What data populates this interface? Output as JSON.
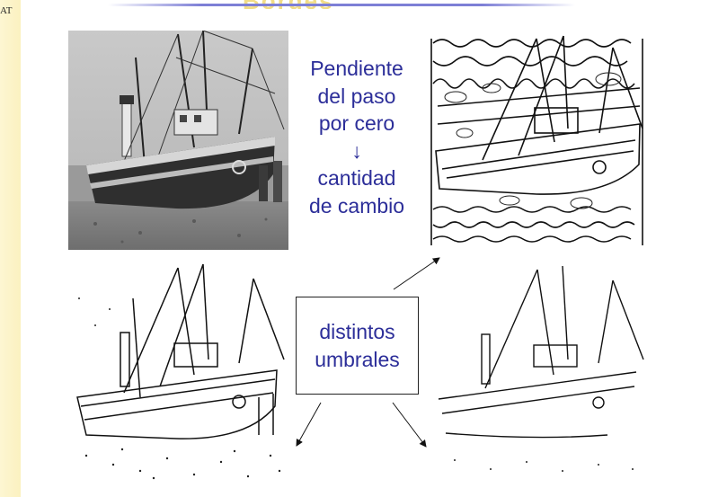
{
  "slide": {
    "corner_label": "AT",
    "title": "Bordes",
    "zero_cross_text": [
      "Pendiente",
      "del paso",
      "por cero",
      "↓",
      "cantidad",
      "de cambio"
    ],
    "threshold_box_text": [
      "distintos",
      "umbrales"
    ]
  },
  "images": [
    {
      "name": "original-boat-photo",
      "kind": "grayscale photograph"
    },
    {
      "name": "zero-crossing-edges",
      "kind": "edge map"
    },
    {
      "name": "threshold-edges-low",
      "kind": "edge map"
    },
    {
      "name": "threshold-edges-high",
      "kind": "edge map"
    }
  ],
  "icons": {
    "down_arrow": "down-arrow-icon"
  },
  "colors": {
    "text": "#2c2e99",
    "left_strip": "#fbf1c0",
    "title_rule": "#7d7fd6"
  }
}
